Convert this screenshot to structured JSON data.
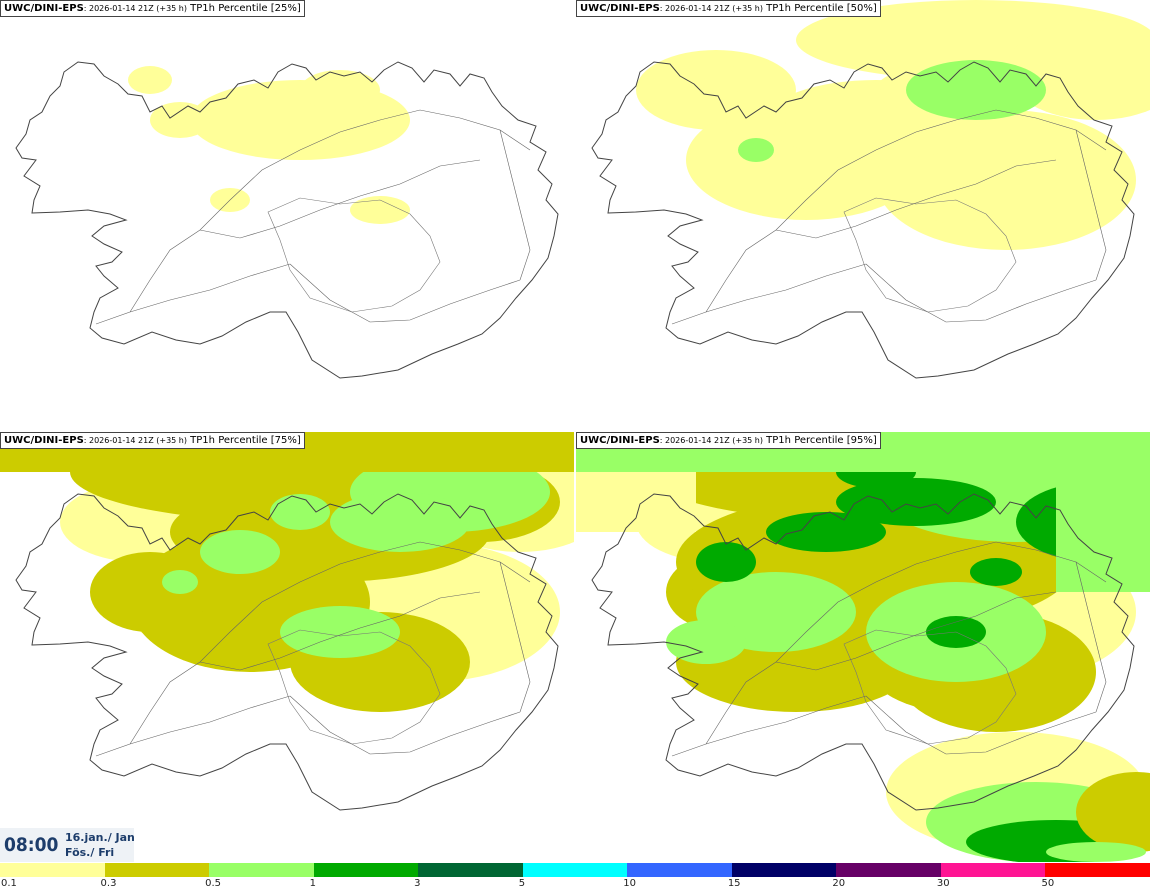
{
  "panels": [
    {
      "model": "UWC/DINI-EPS",
      "run": ": 2026-01-14 21Z (+35 h)",
      "field": "TP1h Percentile [25%]",
      "level": 0
    },
    {
      "model": "UWC/DINI-EPS",
      "run": ": 2026-01-14 21Z (+35 h)",
      "field": "TP1h Percentile [50%]",
      "level": 1
    },
    {
      "model": "UWC/DINI-EPS",
      "run": ": 2026-01-14 21Z (+35 h)",
      "field": "TP1h Percentile [75%]",
      "level": 2
    },
    {
      "model": "UWC/DINI-EPS",
      "run": ": 2026-01-14 21Z (+35 h)",
      "field": "TP1h Percentile [95%]",
      "level": 3
    }
  ],
  "valid_time": {
    "time": "08:00",
    "date": "16.jan./ Jan",
    "day": "Fös./ Fri"
  },
  "legend": {
    "bins": [
      {
        "label": "0.1",
        "color": "#ffff99"
      },
      {
        "label": "0.3",
        "color": "#cccc00"
      },
      {
        "label": "0.5",
        "color": "#99ff66"
      },
      {
        "label": "1",
        "color": "#00aa00"
      },
      {
        "label": "3",
        "color": "#006633"
      },
      {
        "label": "5",
        "color": "#00ffff"
      },
      {
        "label": "10",
        "color": "#3366ff"
      },
      {
        "label": "15",
        "color": "#000066"
      },
      {
        "label": "20",
        "color": "#660066"
      },
      {
        "label": "30",
        "color": "#ff1493"
      },
      {
        "label": "50",
        "color": "#ff0000"
      }
    ]
  },
  "colors": {
    "map_line": "#444444",
    "background": "#ffffff"
  }
}
